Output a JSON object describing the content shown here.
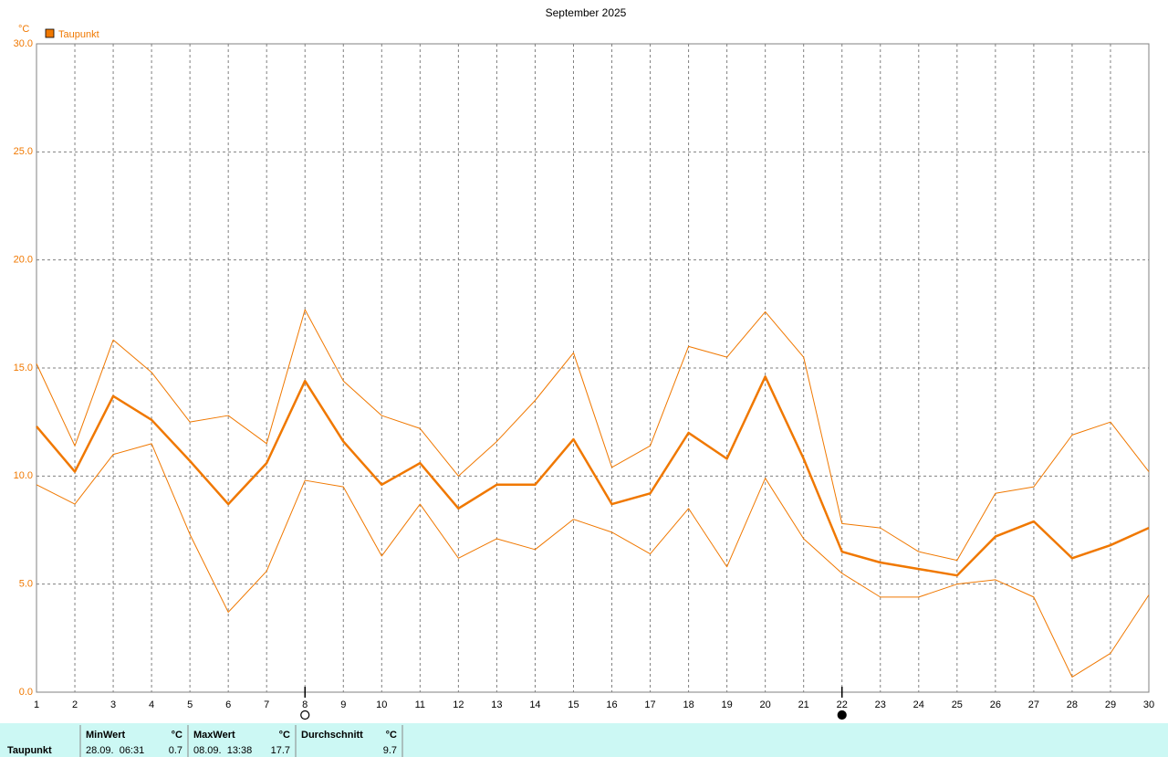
{
  "chart_data": {
    "type": "line",
    "title": "September 2025",
    "y_unit": "°C",
    "x": [
      1,
      2,
      3,
      4,
      5,
      6,
      7,
      8,
      9,
      10,
      11,
      12,
      13,
      14,
      15,
      16,
      17,
      18,
      19,
      20,
      21,
      22,
      23,
      24,
      25,
      26,
      27,
      28,
      29,
      30
    ],
    "xlim": [
      1,
      30
    ],
    "xticks": [
      1,
      2,
      3,
      4,
      5,
      6,
      7,
      8,
      9,
      10,
      11,
      12,
      13,
      14,
      15,
      16,
      17,
      18,
      19,
      20,
      21,
      22,
      23,
      24,
      25,
      26,
      27,
      28,
      29,
      30
    ],
    "ylim": [
      0,
      30
    ],
    "yticks": [
      {
        "value": 0,
        "label": "0.0"
      },
      {
        "value": 5,
        "label": "5.0"
      },
      {
        "value": 10,
        "label": "10.0"
      },
      {
        "value": 15,
        "label": "15.0"
      },
      {
        "value": 20,
        "label": "20.0"
      },
      {
        "value": 25,
        "label": "25.0"
      },
      {
        "value": 30,
        "label": "30.0"
      }
    ],
    "grid": true,
    "series": [
      {
        "name": "Taupunkt",
        "color": "#f07800",
        "width": 2.5,
        "values": [
          12.3,
          10.2,
          13.7,
          12.6,
          10.7,
          8.7,
          10.6,
          14.4,
          11.6,
          9.6,
          10.6,
          8.5,
          9.6,
          9.6,
          11.7,
          8.7,
          9.2,
          12.0,
          10.8,
          14.6,
          10.8,
          6.5,
          6.0,
          5.7,
          5.4,
          7.2,
          7.9,
          6.2,
          6.8,
          7.6
        ]
      },
      {
        "color": "#f07800",
        "width": 1,
        "values": [
          15.2,
          11.4,
          16.3,
          14.8,
          12.5,
          12.8,
          11.5,
          17.7,
          14.4,
          12.8,
          12.2,
          10.0,
          11.6,
          13.5,
          15.7,
          10.4,
          11.4,
          16.0,
          15.5,
          17.6,
          15.5,
          7.8,
          7.6,
          6.5,
          6.1,
          9.2,
          9.5,
          11.9,
          12.5,
          10.2
        ]
      },
      {
        "color": "#f07800",
        "width": 1,
        "values": [
          9.6,
          8.7,
          11.0,
          11.5,
          7.3,
          3.7,
          5.6,
          9.8,
          9.5,
          6.3,
          8.7,
          6.2,
          7.1,
          6.6,
          8.0,
          7.4,
          6.4,
          8.5,
          5.8,
          9.9,
          7.1,
          5.5,
          4.4,
          4.4,
          5.0,
          5.2,
          4.4,
          0.7,
          1.8,
          4.5
        ]
      }
    ],
    "markers": [
      {
        "x": 8,
        "style": "open"
      },
      {
        "x": 22,
        "style": "filled"
      }
    ]
  },
  "table": {
    "row_label": "Taupunkt",
    "columns": [
      {
        "header": "MinWert",
        "unit": "°C",
        "when": "28.09.  06:31",
        "value": 0.7
      },
      {
        "header": "MaxWert",
        "unit": "°C",
        "when": "08.09.  13:38",
        "value": 17.7
      },
      {
        "header": "Durchschnitt",
        "unit": "°C",
        "value": 9.7
      }
    ]
  }
}
